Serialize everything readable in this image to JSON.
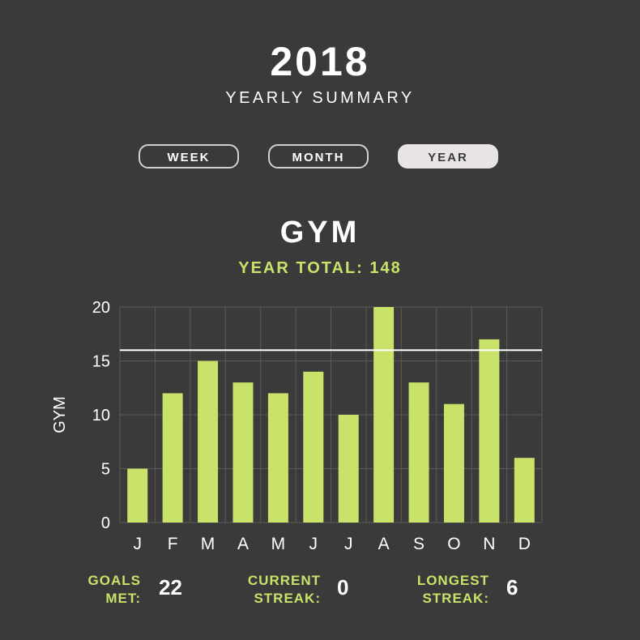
{
  "header": {
    "year": "2018",
    "subtitle": "YEARLY SUMMARY"
  },
  "tabs": [
    {
      "label": "WEEK",
      "active": false
    },
    {
      "label": "MONTH",
      "active": false
    },
    {
      "label": "YEAR",
      "active": true
    }
  ],
  "section": {
    "title": "GYM",
    "total_label": "YEAR TOTAL: 148"
  },
  "chart_data": {
    "type": "bar",
    "categories": [
      "J",
      "F",
      "M",
      "A",
      "M",
      "J",
      "J",
      "A",
      "S",
      "O",
      "N",
      "D"
    ],
    "values": [
      5,
      12,
      15,
      13,
      12,
      14,
      10,
      20,
      13,
      11,
      17,
      6
    ],
    "ylabel": "GYM",
    "ylim": [
      0,
      20
    ],
    "yticks": [
      0,
      5,
      10,
      15,
      20
    ],
    "goal_line": 16,
    "grid": true,
    "colors": {
      "bar": "#c8e26a",
      "goal_line": "#ffffff",
      "grid": "#5a5a5a",
      "axis_text": "#ffffff"
    }
  },
  "stats": [
    {
      "label": "GOALS\nMET:",
      "value": "22"
    },
    {
      "label": "CURRENT\nSTREAK:",
      "value": "0"
    },
    {
      "label": "LONGEST\nSTREAK:",
      "value": "6"
    }
  ]
}
